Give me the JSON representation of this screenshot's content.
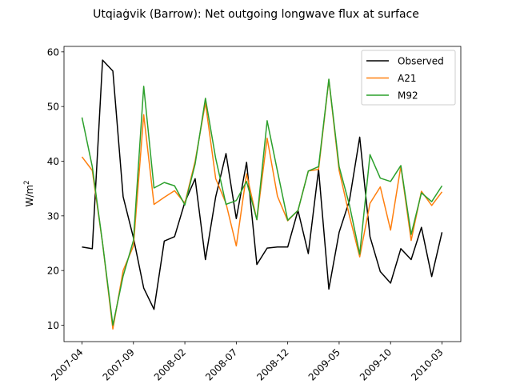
{
  "chart_data": {
    "type": "line",
    "title": "Utqiaġvik (Barrow): Net outgoing longwave flux at surface",
    "xlabel": "",
    "ylabel": "W/m",
    "ylabel_superscript": "2",
    "ylim": [
      7,
      61
    ],
    "yticks": [
      10,
      20,
      30,
      40,
      50,
      60
    ],
    "xtick_labels": [
      "2007-04",
      "2007-09",
      "2008-02",
      "2008-07",
      "2008-12",
      "2009-05",
      "2009-10",
      "2010-03"
    ],
    "x": [
      "2007-04",
      "2007-05",
      "2007-06",
      "2007-07",
      "2007-08",
      "2007-09",
      "2007-10",
      "2007-11",
      "2007-12",
      "2008-01",
      "2008-02",
      "2008-03",
      "2008-04",
      "2008-05",
      "2008-06",
      "2008-07",
      "2008-08",
      "2008-09",
      "2008-10",
      "2008-11",
      "2008-12",
      "2009-01",
      "2009-02",
      "2009-03",
      "2009-04",
      "2009-05",
      "2009-06",
      "2009-07",
      "2009-08",
      "2009-09",
      "2009-10",
      "2009-11",
      "2009-12",
      "2010-01",
      "2010-02",
      "2010-03"
    ],
    "legend_position": "top-right",
    "series": [
      {
        "name": "Observed",
        "color": "#000000",
        "values": [
          24.3,
          24.0,
          58.5,
          56.5,
          33.5,
          26.0,
          16.8,
          12.9,
          25.4,
          26.2,
          32.5,
          36.8,
          22.0,
          33.5,
          41.4,
          29.5,
          39.8,
          21.1,
          24.1,
          24.3,
          24.3,
          31.0,
          23.1,
          38.5,
          16.6,
          27.0,
          32.8,
          44.4,
          26.2,
          19.8,
          17.7,
          24.0,
          22.0,
          27.9,
          18.9,
          27.0
        ]
      },
      {
        "name": "A21",
        "color": "#ff7f0e",
        "values": [
          40.8,
          38.3,
          25.0,
          9.3,
          20.0,
          24.5,
          48.5,
          32.1,
          33.4,
          34.6,
          32.3,
          40.0,
          50.7,
          36.8,
          32.3,
          24.5,
          37.7,
          29.3,
          44.2,
          33.6,
          29.1,
          31.0,
          38.2,
          38.5,
          54.9,
          38.3,
          30.0,
          22.5,
          32.3,
          35.3,
          27.4,
          39.1,
          25.5,
          34.5,
          31.9,
          34.4
        ]
      },
      {
        "name": "M92",
        "color": "#2ca02c",
        "values": [
          48.0,
          39.0,
          25.0,
          10.0,
          19.0,
          25.5,
          53.7,
          35.1,
          36.1,
          35.5,
          32.0,
          39.5,
          51.5,
          40.5,
          32.1,
          32.8,
          36.3,
          29.3,
          47.4,
          38.2,
          29.2,
          31.0,
          38.2,
          39.0,
          55.0,
          39.0,
          32.0,
          23.0,
          41.2,
          36.9,
          36.3,
          39.2,
          26.6,
          34.2,
          32.6,
          35.5
        ]
      }
    ]
  }
}
